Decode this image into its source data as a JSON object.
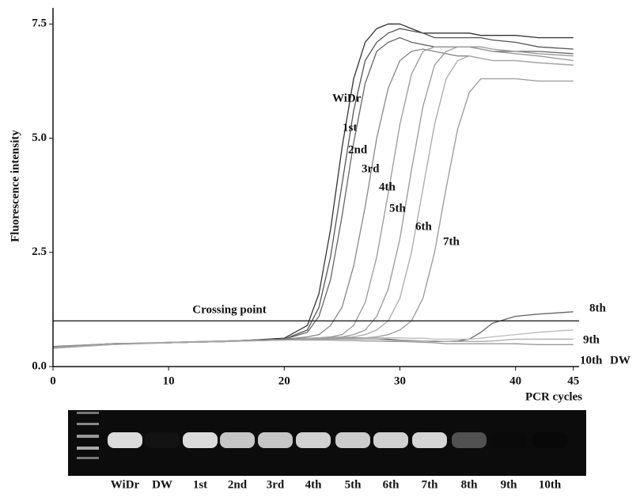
{
  "chart_data": {
    "type": "line",
    "ylabel": "Fluorescence intensity",
    "xlabel": "PCR cycles",
    "x": [
      0,
      5,
      10,
      15,
      20,
      22,
      23,
      24,
      25,
      26,
      27,
      28,
      29,
      30,
      31,
      32,
      33,
      34,
      35,
      36,
      37,
      38,
      40,
      42,
      45
    ],
    "series": [
      {
        "name": "WiDr",
        "color": "#333333",
        "values": [
          0.4,
          0.5,
          0.52,
          0.55,
          0.62,
          0.9,
          1.6,
          3.0,
          4.8,
          6.3,
          7.1,
          7.4,
          7.5,
          7.5,
          7.4,
          7.3,
          7.3,
          7.3,
          7.3,
          7.3,
          7.25,
          7.25,
          7.25,
          7.2,
          7.2
        ]
      },
      {
        "name": "1st",
        "color": "#555555",
        "values": [
          0.42,
          0.48,
          0.53,
          0.56,
          0.6,
          0.8,
          1.3,
          2.4,
          4.0,
          5.6,
          6.7,
          7.1,
          7.3,
          7.4,
          7.35,
          7.3,
          7.2,
          7.2,
          7.2,
          7.2,
          7.2,
          7.15,
          7.1,
          7.0,
          6.95
        ]
      },
      {
        "name": "2nd",
        "color": "#666666",
        "values": [
          0.44,
          0.5,
          0.52,
          0.55,
          0.6,
          0.75,
          1.1,
          1.9,
          3.3,
          4.9,
          6.2,
          6.9,
          7.1,
          7.2,
          7.1,
          7.05,
          7.0,
          7.0,
          7.0,
          7.0,
          6.95,
          6.9,
          6.9,
          6.9,
          6.85
        ]
      },
      {
        "name": "3rd",
        "color": "#888888",
        "values": [
          0.4,
          0.49,
          0.52,
          0.56,
          0.6,
          0.65,
          0.7,
          0.9,
          1.3,
          2.2,
          3.5,
          5.0,
          6.1,
          6.7,
          6.9,
          6.95,
          6.9,
          6.85,
          6.8,
          6.8,
          6.75,
          6.7,
          6.7,
          6.65,
          6.6
        ]
      },
      {
        "name": "4th",
        "color": "#999999",
        "values": [
          0.43,
          0.5,
          0.52,
          0.55,
          0.6,
          0.62,
          0.63,
          0.65,
          0.7,
          0.9,
          1.4,
          2.4,
          3.8,
          5.3,
          6.4,
          6.9,
          7.0,
          7.0,
          7.0,
          7.0,
          7.0,
          6.95,
          6.9,
          6.85,
          6.8
        ]
      },
      {
        "name": "5th",
        "color": "#999999",
        "values": [
          0.42,
          0.5,
          0.53,
          0.56,
          0.6,
          0.62,
          0.63,
          0.64,
          0.65,
          0.7,
          0.8,
          1.1,
          1.7,
          2.8,
          4.3,
          5.7,
          6.6,
          6.9,
          7.0,
          7.0,
          6.95,
          6.9,
          6.85,
          6.8,
          6.7
        ]
      },
      {
        "name": "6th",
        "color": "#aaaaaa",
        "values": [
          0.41,
          0.5,
          0.52,
          0.55,
          0.6,
          0.62,
          0.62,
          0.63,
          0.64,
          0.65,
          0.7,
          0.8,
          1.0,
          1.5,
          2.5,
          3.9,
          5.3,
          6.3,
          6.7,
          6.8,
          6.75,
          6.7,
          6.7,
          6.65,
          6.6
        ]
      },
      {
        "name": "7th",
        "color": "#999999",
        "values": [
          0.42,
          0.5,
          0.52,
          0.55,
          0.6,
          0.6,
          0.61,
          0.62,
          0.62,
          0.63,
          0.63,
          0.65,
          0.7,
          0.8,
          1.0,
          1.5,
          2.5,
          3.9,
          5.2,
          6.0,
          6.3,
          6.3,
          6.3,
          6.25,
          6.25
        ]
      },
      {
        "name": "8th",
        "color": "#666666",
        "values": [
          0.42,
          0.5,
          0.52,
          0.55,
          0.6,
          0.6,
          0.6,
          0.6,
          0.6,
          0.6,
          0.6,
          0.6,
          0.6,
          0.58,
          0.57,
          0.56,
          0.55,
          0.55,
          0.56,
          0.6,
          0.75,
          0.95,
          1.1,
          1.15,
          1.2
        ]
      },
      {
        "name": "9th",
        "color": "#bbbbbb",
        "values": [
          0.4,
          0.48,
          0.52,
          0.55,
          0.58,
          0.6,
          0.6,
          0.6,
          0.6,
          0.6,
          0.62,
          0.63,
          0.63,
          0.63,
          0.62,
          0.62,
          0.6,
          0.6,
          0.6,
          0.6,
          0.62,
          0.65,
          0.7,
          0.75,
          0.8
        ]
      },
      {
        "name": "10th",
        "color": "#999999",
        "values": [
          0.42,
          0.5,
          0.52,
          0.55,
          0.58,
          0.58,
          0.58,
          0.58,
          0.57,
          0.57,
          0.56,
          0.56,
          0.55,
          0.55,
          0.54,
          0.53,
          0.52,
          0.5,
          0.5,
          0.5,
          0.5,
          0.5,
          0.5,
          0.48,
          0.48
        ]
      },
      {
        "name": "DW",
        "color": "#aaaaaa",
        "values": [
          0.4,
          0.48,
          0.52,
          0.55,
          0.58,
          0.6,
          0.6,
          0.6,
          0.6,
          0.6,
          0.6,
          0.6,
          0.58,
          0.57,
          0.56,
          0.56,
          0.56,
          0.55,
          0.55,
          0.55,
          0.55,
          0.56,
          0.6,
          0.6,
          0.6
        ]
      }
    ],
    "threshold": {
      "value": 1.0,
      "label": "Crossing point"
    },
    "xlim": [
      0,
      45.5
    ],
    "ylim": [
      0,
      7.8
    ],
    "xticks": [
      0,
      10,
      20,
      30,
      40,
      45
    ],
    "yticks": [
      {
        "value": 0,
        "label": "0.0"
      },
      2.5,
      {
        "value": 5,
        "label": "5.0"
      },
      7.5
    ]
  },
  "gel": {
    "lanes": [
      "WiDr",
      "DW",
      "1st",
      "2nd",
      "3rd",
      "4th",
      "5th",
      "6th",
      "7th",
      "8th",
      "9th",
      "10th"
    ]
  }
}
